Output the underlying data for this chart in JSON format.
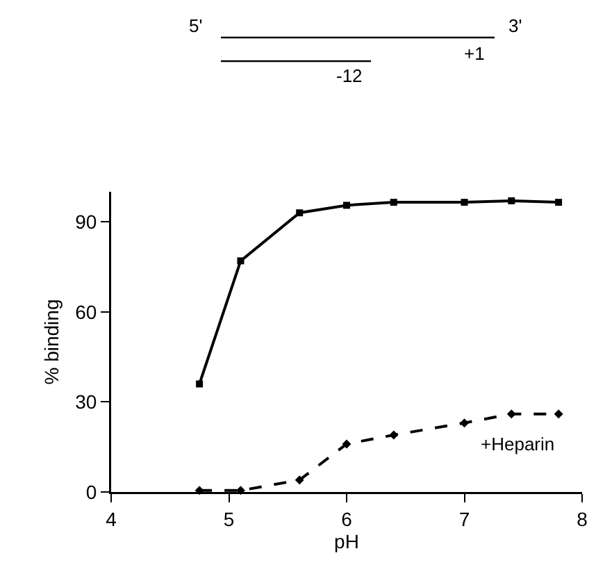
{
  "chart_data": {
    "type": "line",
    "xlabel": "pH",
    "ylabel": "% binding",
    "xlim": [
      4,
      8
    ],
    "xticks": [
      4,
      5,
      6,
      7,
      8
    ],
    "ylim": [
      0,
      100
    ],
    "yticks": [
      0,
      30,
      60,
      90
    ],
    "grid": false,
    "x": [
      4.75,
      5.1,
      5.6,
      6.0,
      6.4,
      7.0,
      7.4,
      7.8
    ],
    "series": [
      {
        "color": "#000000",
        "marker": "square",
        "line_style": "solid",
        "values": [
          36,
          77,
          93,
          95.5,
          96.5,
          96.5,
          97,
          96.5
        ]
      },
      {
        "color": "#000000",
        "marker": "diamond",
        "line_style": "dashed",
        "values": [
          0.5,
          0.5,
          4,
          16,
          19,
          23,
          26,
          26
        ]
      }
    ],
    "annotations": [
      "5'",
      "3'",
      "+1",
      "-12",
      "+Heparin"
    ]
  }
}
